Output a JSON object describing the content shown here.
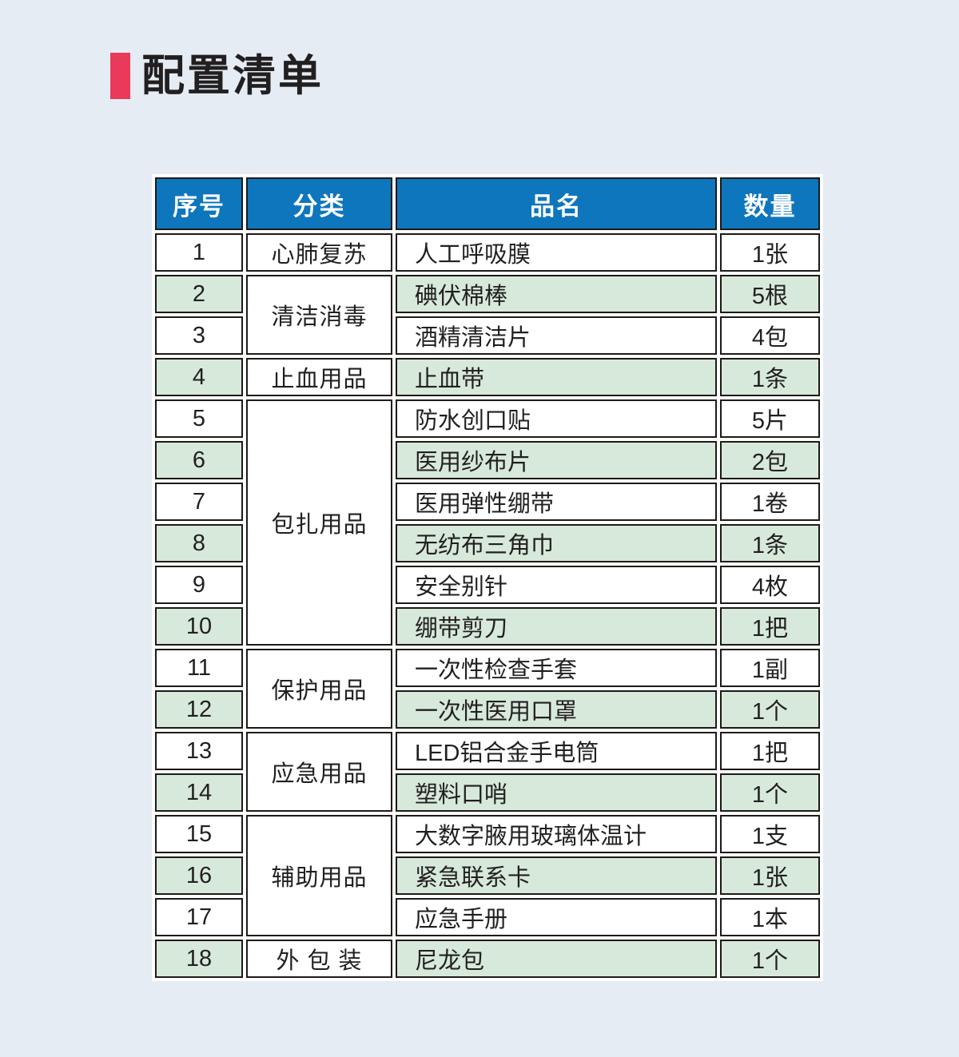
{
  "colors": {
    "page_background": "#e5ecf4",
    "title_accent": "#e93a5a",
    "header_background": "#0e76bd",
    "header_text": "#ffffff",
    "row_green": "#d7e9da",
    "row_white": "#ffffff",
    "border": "#1d1a18"
  },
  "title": {
    "text": "配置清单"
  },
  "table": {
    "header": {
      "columns": [
        "序号",
        "分类",
        "品名",
        "数量"
      ]
    },
    "categories": [
      {
        "label": "心肺复苏",
        "rowspan": 1
      },
      {
        "label": "清洁消毒",
        "rowspan": 2
      },
      {
        "label": "止血用品",
        "rowspan": 1
      },
      {
        "label": "包扎用品",
        "rowspan": 6
      },
      {
        "label": "保护用品",
        "rowspan": 2
      },
      {
        "label": "应急用品",
        "rowspan": 2
      },
      {
        "label": "辅助用品",
        "rowspan": 3
      },
      {
        "label": "外 包 装",
        "rowspan": 1
      }
    ],
    "rows": [
      {
        "no": "1",
        "name": "人工呼吸膜",
        "qty": "1张"
      },
      {
        "no": "2",
        "name": "碘伏棉棒",
        "qty": "5根"
      },
      {
        "no": "3",
        "name": "酒精清洁片",
        "qty": "4包"
      },
      {
        "no": "4",
        "name": "止血带",
        "qty": "1条"
      },
      {
        "no": "5",
        "name": "防水创口贴",
        "qty": "5片"
      },
      {
        "no": "6",
        "name": "医用纱布片",
        "qty": "2包"
      },
      {
        "no": "7",
        "name": "医用弹性绷带",
        "qty": "1卷"
      },
      {
        "no": "8",
        "name": "无纺布三角巾",
        "qty": "1条"
      },
      {
        "no": "9",
        "name": "安全别针",
        "qty": "4枚"
      },
      {
        "no": "10",
        "name": "绷带剪刀",
        "qty": "1把"
      },
      {
        "no": "11",
        "name": "一次性检查手套",
        "qty": "1副"
      },
      {
        "no": "12",
        "name": "一次性医用口罩",
        "qty": "1个"
      },
      {
        "no": "13",
        "name": "LED铝合金手电筒",
        "qty": "1把"
      },
      {
        "no": "14",
        "name": "塑料口哨",
        "qty": "1个"
      },
      {
        "no": "15",
        "name": "大数字腋用玻璃体温计",
        "qty": "1支"
      },
      {
        "no": "16",
        "name": "紧急联系卡",
        "qty": "1张"
      },
      {
        "no": "17",
        "name": "应急手册",
        "qty": "1本"
      },
      {
        "no": "18",
        "name": "尼龙包",
        "qty": "1个"
      }
    ]
  }
}
